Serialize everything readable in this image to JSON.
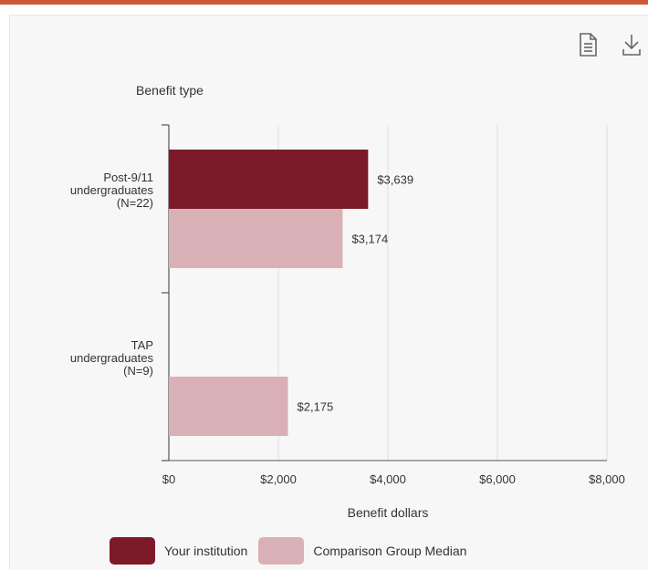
{
  "theme": {
    "accent": "#cc5a36",
    "institution_color": "#7d1a2a",
    "comparison_color": "#d9b0b6",
    "grid_color": "#dadde8",
    "plot_bg": "#f7f7f7"
  },
  "toolbar": {
    "icons": [
      "document-icon",
      "download-icon"
    ]
  },
  "chart_data": {
    "type": "bar",
    "orientation": "horizontal",
    "title": "",
    "ylabel": "Benefit type",
    "xlabel": "Benefit dollars",
    "xlim": [
      0,
      8000
    ],
    "xticks": [
      0,
      2000,
      4000,
      6000,
      8000
    ],
    "xtick_labels": [
      "$0",
      "$2,000",
      "$4,000",
      "$6,000",
      "$8,000"
    ],
    "grid": true,
    "legend_position": "bottom",
    "categories": [
      [
        "Post-9/11",
        "undergraduates",
        "(N=22)"
      ],
      [
        "TAP",
        "undergraduates",
        "(N=9)"
      ]
    ],
    "series": [
      {
        "name": "Your institution",
        "color": "#7d1a2a",
        "values": [
          3639,
          null
        ],
        "labels": [
          "$3,639",
          ""
        ]
      },
      {
        "name": "Comparison Group Median",
        "color": "#d9b0b6",
        "values": [
          3174,
          2175
        ],
        "labels": [
          "$3,174",
          "$2,175"
        ]
      }
    ]
  }
}
